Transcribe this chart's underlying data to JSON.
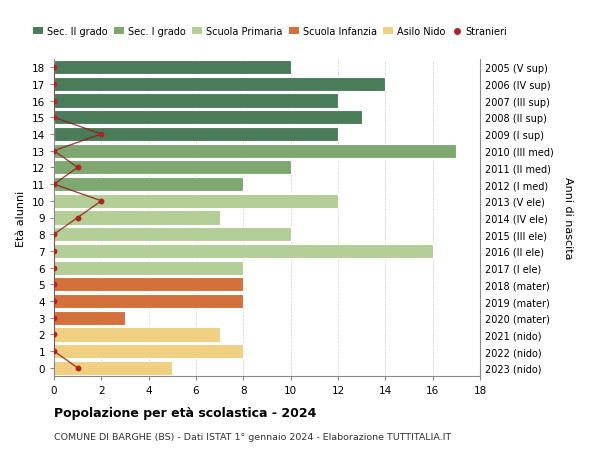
{
  "ages": [
    18,
    17,
    16,
    15,
    14,
    13,
    12,
    11,
    10,
    9,
    8,
    7,
    6,
    5,
    4,
    3,
    2,
    1,
    0
  ],
  "right_labels": [
    "2005 (V sup)",
    "2006 (IV sup)",
    "2007 (III sup)",
    "2008 (II sup)",
    "2009 (I sup)",
    "2010 (III med)",
    "2011 (II med)",
    "2012 (I med)",
    "2013 (V ele)",
    "2014 (IV ele)",
    "2015 (III ele)",
    "2016 (II ele)",
    "2017 (I ele)",
    "2018 (mater)",
    "2019 (mater)",
    "2020 (mater)",
    "2021 (nido)",
    "2022 (nido)",
    "2023 (nido)"
  ],
  "bar_values": [
    10,
    14,
    12,
    13,
    12,
    17,
    10,
    8,
    12,
    7,
    10,
    16,
    8,
    8,
    8,
    3,
    7,
    8,
    5
  ],
  "bar_colors": [
    "#4a7c59",
    "#4a7c59",
    "#4a7c59",
    "#4a7c59",
    "#4a7c59",
    "#7fa870",
    "#7fa870",
    "#7fa870",
    "#b3ce96",
    "#b3ce96",
    "#b3ce96",
    "#b3ce96",
    "#b3ce96",
    "#d4713a",
    "#d4713a",
    "#d4713a",
    "#f0d080",
    "#f0d080",
    "#f0d080"
  ],
  "stranieri_values": [
    0,
    0,
    0,
    0,
    2,
    0,
    1,
    0,
    2,
    1,
    0,
    0,
    0,
    0,
    0,
    0,
    0,
    0,
    1
  ],
  "title_bold": "Popolazione per età scolastica - 2024",
  "subtitle": "COMUNE DI BARGHE (BS) - Dati ISTAT 1° gennaio 2024 - Elaborazione TUTTITALIA.IT",
  "ylabel": "Età alunni",
  "right_ylabel": "Anni di nascita",
  "xlim": [
    0,
    18
  ],
  "xticks": [
    0,
    2,
    4,
    6,
    8,
    10,
    12,
    14,
    16,
    18
  ],
  "legend_entries": [
    {
      "label": "Sec. II grado",
      "color": "#4a7c59"
    },
    {
      "label": "Sec. I grado",
      "color": "#7fa870"
    },
    {
      "label": "Scuola Primaria",
      "color": "#b3ce96"
    },
    {
      "label": "Scuola Infanzia",
      "color": "#d4713a"
    },
    {
      "label": "Asilo Nido",
      "color": "#f0d080"
    },
    {
      "label": "Stranieri",
      "color": "#b22222"
    }
  ],
  "bg_color": "#ffffff",
  "grid_color": "#d0d0d0"
}
